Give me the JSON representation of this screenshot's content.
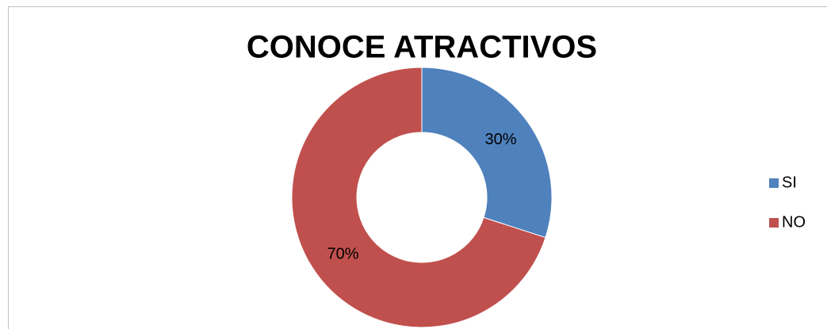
{
  "chart_data": {
    "type": "donut",
    "title": "CONOCE ATRACTIVOS",
    "categories": [
      "SI",
      "NO"
    ],
    "values": [
      30,
      70
    ],
    "value_labels": [
      "30%",
      "70%"
    ],
    "colors": [
      "#4f81bd",
      "#c0504d"
    ],
    "legend": "right"
  }
}
